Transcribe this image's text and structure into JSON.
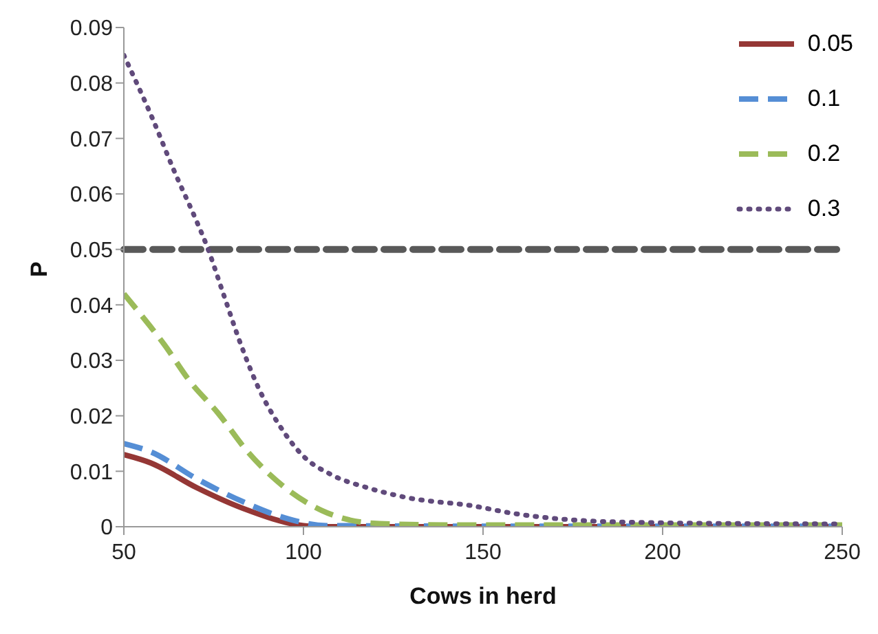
{
  "chart_data": {
    "type": "line",
    "xlabel": "Cows in herd",
    "ylabel": "P",
    "xlim": [
      50,
      250
    ],
    "xticks": [
      50,
      100,
      150,
      200,
      250
    ],
    "ylim": [
      0,
      0.09
    ],
    "yticks": [
      0,
      0.01,
      0.02,
      0.03,
      0.04,
      0.05,
      0.06,
      0.07,
      0.08,
      0.09
    ],
    "grid": false,
    "legend": "top right",
    "marker": "none",
    "ref_lines": [
      {
        "axis": "y",
        "value": 0.05,
        "color": "#595959",
        "line_style": "dashed"
      }
    ],
    "series": [
      {
        "name": "0.05",
        "color": "#953735",
        "line_style": "solid",
        "x": [
          50,
          57.5,
          70.4,
          83.2,
          100,
          105,
          150,
          200,
          250
        ],
        "values": [
          0.013,
          0.0115,
          0.007,
          0.0033,
          0.0002,
          0,
          0,
          0,
          0
        ]
      },
      {
        "name": "0.1",
        "color": "#558ed5",
        "line_style": "dashed",
        "x": [
          50,
          57.5,
          70.4,
          83.2,
          94.8,
          106.4,
          150,
          200,
          250
        ],
        "values": [
          0.015,
          0.0135,
          0.0086,
          0.0045,
          0.0016,
          0.0002,
          0.0001,
          0.0001,
          0.0001
        ]
      },
      {
        "name": "0.2",
        "color": "#9bbb59",
        "line_style": "dashed",
        "x": [
          50,
          57.5,
          61.3,
          68.4,
          76.2,
          84.5,
          94.2,
          105.2,
          118,
          129.6,
          150,
          200,
          250
        ],
        "values": [
          0.042,
          0.036,
          0.0328,
          0.0262,
          0.0205,
          0.0135,
          0.0074,
          0.0029,
          0.0007,
          0.0004,
          0.0003,
          0.0003,
          0.0003
        ]
      },
      {
        "name": "0.3",
        "color": "#604a7b",
        "line_style": "dotted",
        "x": [
          50,
          58.1,
          63.9,
          70.1,
          73,
          77.8,
          82.6,
          87.8,
          93.6,
          100,
          107.7,
          118,
          128.4,
          147.7,
          157.5,
          169.8,
          181,
          192.5,
          200,
          250
        ],
        "values": [
          0.085,
          0.0734,
          0.0643,
          0.0553,
          0.0508,
          0.0418,
          0.0328,
          0.0246,
          0.018,
          0.0127,
          0.0094,
          0.007,
          0.0053,
          0.0037,
          0.0025,
          0.0015,
          0.001,
          0.0008,
          0.0007,
          0.0005
        ]
      }
    ]
  }
}
